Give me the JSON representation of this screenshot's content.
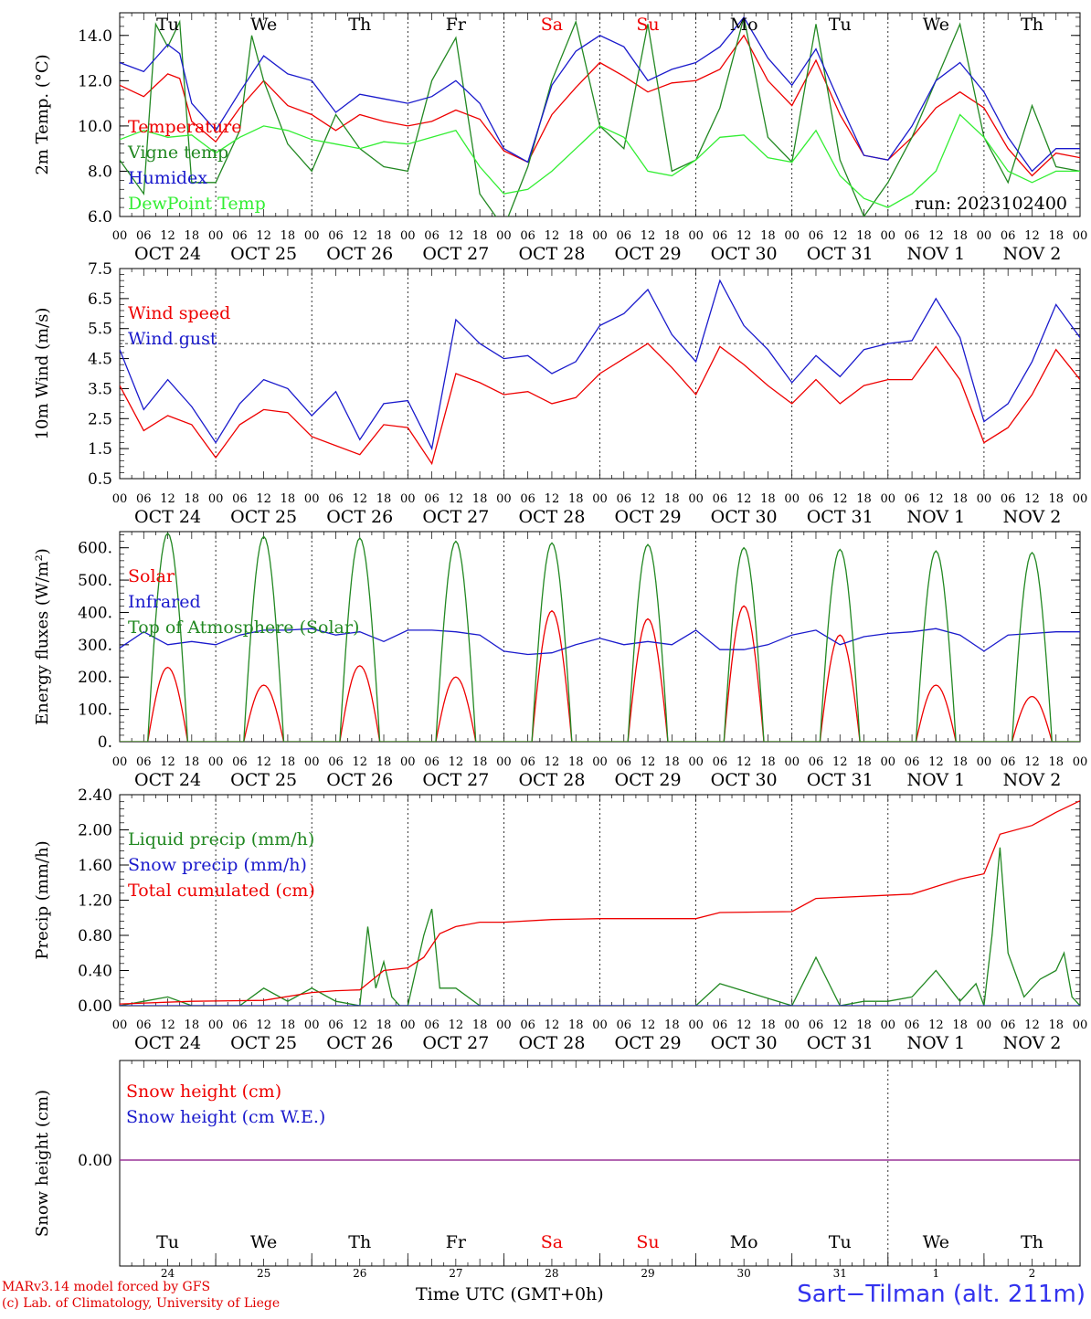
{
  "days": [
    "Tu",
    "We",
    "Th",
    "Fr",
    "Sa",
    "Su",
    "Mo",
    "Tu",
    "We",
    "Th"
  ],
  "weekend_days": [
    "Sa",
    "Su"
  ],
  "dates": [
    "OCT 24",
    "OCT 25",
    "OCT 26",
    "OCT 27",
    "OCT 28",
    "OCT 29",
    "OCT 30",
    "OCT 31",
    "NOV  1",
    "NOV  2"
  ],
  "bottom_dates": [
    "24",
    "25",
    "26",
    "27",
    "28",
    "29",
    "30",
    "31",
    "1",
    "2"
  ],
  "hour_labels": [
    "00",
    "06",
    "12",
    "18"
  ],
  "hour_end_label": "00",
  "run_label": "run: 2023102400",
  "footer": {
    "model": "MARv3.14 model forced by GFS",
    "lab": "(c) Lab. of Climatology, University of Liege",
    "time_axis": "Time UTC (GMT+0h)",
    "station": "Sart−Tilman (alt. 211m)"
  },
  "colors": {
    "red": "#ee0000",
    "green": "#228822",
    "blue": "#1a1acc",
    "lightgreen": "#33ee33",
    "purple": "#8833aa"
  },
  "chart_data": [
    {
      "type": "line",
      "ylabel": "2m Temp. (°C)",
      "ylim": [
        6,
        15
      ],
      "yticks": [
        "6.0",
        "8.0",
        "10.0",
        "12.0",
        "14.0"
      ],
      "ytick_values": [
        6,
        8,
        10,
        12,
        14
      ],
      "x_unit": "hours since 2023-10-24 00 UTC",
      "series": [
        {
          "name": "Temperature",
          "color": "#ee0000",
          "x": [
            0,
            6,
            12,
            15,
            18,
            24,
            30,
            36,
            42,
            48,
            54,
            60,
            66,
            72,
            78,
            84,
            90,
            96,
            102,
            108,
            114,
            120,
            126,
            132,
            138,
            144,
            150,
            156,
            162,
            168,
            174,
            180,
            186,
            192,
            198,
            204,
            210,
            216,
            222,
            228,
            234,
            240
          ],
          "y": [
            11.8,
            11.3,
            12.3,
            12.1,
            10.2,
            9.3,
            10.8,
            12.0,
            10.9,
            10.5,
            9.8,
            10.5,
            10.2,
            10.0,
            10.2,
            10.7,
            10.3,
            8.9,
            8.4,
            10.5,
            11.7,
            12.8,
            12.2,
            11.5,
            11.9,
            12.0,
            12.5,
            14.0,
            12.0,
            10.9,
            12.9,
            10.5,
            8.7,
            8.5,
            9.5,
            10.8,
            11.5,
            10.8,
            9.0,
            7.8,
            8.8,
            8.6
          ]
        },
        {
          "name": "Vigne temp",
          "color": "#228822",
          "x": [
            0,
            6,
            9,
            12,
            15,
            18,
            24,
            30,
            33,
            36,
            42,
            48,
            54,
            60,
            66,
            72,
            78,
            84,
            90,
            96,
            102,
            108,
            114,
            120,
            126,
            132,
            138,
            144,
            150,
            156,
            162,
            168,
            174,
            180,
            186,
            192,
            198,
            204,
            210,
            216,
            222,
            228,
            234,
            240
          ],
          "y": [
            8.5,
            7.0,
            14.5,
            13.5,
            14.6,
            7.5,
            7.5,
            9.8,
            14.0,
            12.0,
            9.2,
            8.0,
            10.5,
            9.0,
            8.2,
            8.0,
            12.0,
            13.9,
            7.0,
            5.5,
            8.2,
            12.0,
            14.6,
            10.0,
            9.0,
            14.5,
            8.0,
            8.5,
            10.8,
            14.8,
            9.5,
            8.4,
            14.5,
            8.5,
            6.0,
            7.5,
            9.5,
            12.0,
            14.5,
            9.5,
            7.5,
            10.9,
            8.2,
            8.0
          ]
        },
        {
          "name": "Humidex",
          "color": "#1a1acc",
          "x": [
            0,
            6,
            12,
            15,
            18,
            24,
            30,
            36,
            42,
            48,
            54,
            60,
            66,
            72,
            78,
            84,
            90,
            96,
            102,
            108,
            114,
            120,
            126,
            132,
            138,
            144,
            150,
            156,
            162,
            168,
            174,
            180,
            186,
            192,
            198,
            204,
            210,
            216,
            222,
            228,
            234,
            240
          ],
          "y": [
            12.8,
            12.4,
            13.6,
            13.2,
            11.0,
            9.8,
            11.5,
            13.1,
            12.3,
            12.0,
            10.6,
            11.4,
            11.2,
            11.0,
            11.3,
            12.0,
            11.0,
            9.0,
            8.4,
            11.8,
            13.3,
            14.0,
            13.5,
            12.0,
            12.5,
            12.8,
            13.5,
            14.8,
            13.0,
            11.8,
            13.4,
            11.0,
            8.7,
            8.5,
            10.0,
            12.0,
            12.8,
            11.5,
            9.5,
            8.0,
            9.0,
            9.0
          ]
        },
        {
          "name": "DewPoint Temp",
          "color": "#33ee33",
          "x": [
            0,
            6,
            12,
            18,
            24,
            30,
            36,
            42,
            48,
            54,
            60,
            66,
            72,
            78,
            84,
            90,
            96,
            102,
            108,
            114,
            120,
            126,
            132,
            138,
            144,
            150,
            156,
            162,
            168,
            174,
            180,
            186,
            192,
            198,
            204,
            210,
            216,
            222,
            228,
            234,
            240
          ],
          "y": [
            9.4,
            9.8,
            9.5,
            9.6,
            8.8,
            9.5,
            10.0,
            9.8,
            9.4,
            9.2,
            9.0,
            9.3,
            9.2,
            9.5,
            9.8,
            8.2,
            7.0,
            7.2,
            8.0,
            9.0,
            10.0,
            9.5,
            8.0,
            7.8,
            8.5,
            9.5,
            9.6,
            8.6,
            8.4,
            9.8,
            7.8,
            6.8,
            6.4,
            7.0,
            8.0,
            10.5,
            9.5,
            8.0,
            7.5,
            8.0,
            8.0
          ]
        }
      ]
    },
    {
      "type": "line",
      "ylabel": "10m Wind (m/s)",
      "ylim": [
        0.5,
        7.5
      ],
      "yticks": [
        "0.5",
        "1.5",
        "2.5",
        "3.5",
        "4.5",
        "5.5",
        "6.5",
        "7.5"
      ],
      "ytick_values": [
        0.5,
        1.5,
        2.5,
        3.5,
        4.5,
        5.5,
        6.5,
        7.5
      ],
      "reference_line": 5.0,
      "series": [
        {
          "name": "Wind speed",
          "color": "#ee0000",
          "x": [
            0,
            6,
            12,
            18,
            24,
            30,
            36,
            42,
            48,
            54,
            60,
            66,
            72,
            78,
            84,
            90,
            96,
            102,
            108,
            114,
            120,
            126,
            132,
            138,
            144,
            150,
            156,
            162,
            168,
            174,
            180,
            186,
            192,
            198,
            204,
            210,
            216,
            222,
            228,
            234,
            240
          ],
          "y": [
            3.6,
            2.1,
            2.6,
            2.3,
            1.2,
            2.3,
            2.8,
            2.7,
            1.9,
            1.6,
            1.3,
            2.3,
            2.2,
            1.0,
            4.0,
            3.7,
            3.3,
            3.4,
            3.0,
            3.2,
            4.0,
            4.5,
            5.0,
            4.2,
            3.3,
            4.9,
            4.3,
            3.6,
            3.0,
            3.8,
            3.0,
            3.6,
            3.8,
            3.8,
            4.9,
            3.8,
            1.7,
            2.2,
            3.3,
            4.8,
            3.8
          ]
        },
        {
          "name": "Wind gust",
          "color": "#1a1acc",
          "x": [
            0,
            6,
            12,
            18,
            24,
            30,
            36,
            42,
            48,
            54,
            60,
            66,
            72,
            78,
            84,
            90,
            96,
            102,
            108,
            114,
            120,
            126,
            132,
            138,
            144,
            150,
            156,
            162,
            168,
            174,
            180,
            186,
            192,
            198,
            204,
            210,
            216,
            222,
            228,
            234,
            240
          ],
          "y": [
            4.8,
            2.8,
            3.8,
            2.9,
            1.7,
            3.0,
            3.8,
            3.5,
            2.6,
            3.4,
            1.8,
            3.0,
            3.1,
            1.5,
            5.8,
            5.0,
            4.5,
            4.6,
            4.0,
            4.4,
            5.6,
            6.0,
            6.8,
            5.3,
            4.4,
            7.1,
            5.6,
            4.8,
            3.7,
            4.6,
            3.9,
            4.8,
            5.0,
            5.1,
            6.5,
            5.2,
            2.4,
            3.0,
            4.4,
            6.3,
            5.2
          ]
        }
      ]
    },
    {
      "type": "line",
      "ylabel": "Energy fluxes (W/m²)",
      "ylim": [
        0,
        650
      ],
      "yticks": [
        "0.",
        "100.",
        "200.",
        "300.",
        "400.",
        "500.",
        "600."
      ],
      "ytick_values": [
        0,
        100,
        200,
        300,
        400,
        500,
        600
      ],
      "series": [
        {
          "name": "Solar",
          "color": "#ee0000",
          "peaks": [
            230,
            175,
            235,
            200,
            405,
            380,
            420,
            330,
            175,
            140
          ]
        },
        {
          "name": "Infrared",
          "color": "#1a1acc",
          "x": [
            0,
            6,
            12,
            18,
            24,
            30,
            36,
            42,
            48,
            54,
            60,
            66,
            72,
            78,
            84,
            90,
            96,
            102,
            108,
            114,
            120,
            126,
            132,
            138,
            144,
            150,
            156,
            162,
            168,
            174,
            180,
            186,
            192,
            198,
            204,
            210,
            216,
            222,
            228,
            234,
            240
          ],
          "y": [
            290,
            340,
            300,
            310,
            300,
            330,
            345,
            345,
            350,
            330,
            340,
            310,
            345,
            345,
            340,
            330,
            280,
            270,
            275,
            300,
            320,
            300,
            310,
            300,
            345,
            285,
            285,
            300,
            330,
            345,
            300,
            325,
            335,
            340,
            350,
            330,
            280,
            330,
            335,
            340,
            340
          ]
        },
        {
          "name": "Top of Atmosphere (Solar)",
          "color": "#228822",
          "peaks": [
            645,
            635,
            630,
            620,
            615,
            610,
            600,
            595,
            590,
            585
          ]
        }
      ]
    },
    {
      "type": "line",
      "ylabel": "Precip (mm/h)",
      "ylim": [
        0,
        2.4
      ],
      "yticks": [
        "0.00",
        "0.40",
        "0.80",
        "1.20",
        "1.60",
        "2.00",
        "2.40"
      ],
      "ytick_values": [
        0,
        0.4,
        0.8,
        1.2,
        1.6,
        2.0,
        2.4
      ],
      "series": [
        {
          "name": "Liquid precip (mm/h)",
          "color": "#228822",
          "x": [
            0,
            6,
            12,
            18,
            24,
            30,
            36,
            42,
            48,
            54,
            60,
            62,
            64,
            66,
            68,
            70,
            72,
            76,
            78,
            80,
            84,
            90,
            96,
            120,
            138,
            144,
            150,
            168,
            174,
            180,
            186,
            192,
            198,
            204,
            210,
            214,
            216,
            218,
            220,
            222,
            226,
            230,
            234,
            236,
            238,
            240
          ],
          "y": [
            0,
            0.05,
            0.1,
            0,
            0,
            0,
            0.2,
            0.05,
            0.2,
            0.05,
            0,
            0.9,
            0.2,
            0.5,
            0.1,
            0,
            0,
            0.8,
            1.1,
            0.2,
            0.2,
            0,
            0,
            0,
            0,
            0,
            0.25,
            0,
            0.55,
            0,
            0.05,
            0.05,
            0.1,
            0.4,
            0.05,
            0.25,
            0,
            0.8,
            1.8,
            0.6,
            0.1,
            0.3,
            0.4,
            0.6,
            0.1,
            0
          ]
        },
        {
          "name": "Snow precip (mm/h)",
          "color": "#1a1acc",
          "x": [
            0,
            240
          ],
          "y": [
            0,
            0
          ]
        },
        {
          "name": "Total cumulated (cm)",
          "color": "#ee0000",
          "x": [
            0,
            18,
            36,
            48,
            54,
            60,
            66,
            72,
            76,
            80,
            84,
            90,
            96,
            108,
            120,
            144,
            150,
            168,
            174,
            198,
            210,
            216,
            220,
            228,
            234,
            240
          ],
          "y": [
            0.02,
            0.05,
            0.06,
            0.15,
            0.17,
            0.18,
            0.4,
            0.43,
            0.55,
            0.82,
            0.9,
            0.95,
            0.95,
            0.98,
            0.99,
            0.99,
            1.06,
            1.07,
            1.22,
            1.27,
            1.44,
            1.5,
            1.95,
            2.05,
            2.2,
            2.33
          ]
        }
      ]
    },
    {
      "type": "line",
      "ylabel": "Snow height (cm)",
      "yticks": [
        "0.00"
      ],
      "series": [
        {
          "name": "Snow height (cm)",
          "color": "#ee0000",
          "x": [
            0,
            240
          ],
          "y": [
            0,
            0
          ]
        },
        {
          "name": "Snow height (cm W.E.)",
          "color": "#1a1acc",
          "x": [
            0,
            240
          ],
          "y": [
            0,
            0
          ]
        }
      ]
    }
  ]
}
